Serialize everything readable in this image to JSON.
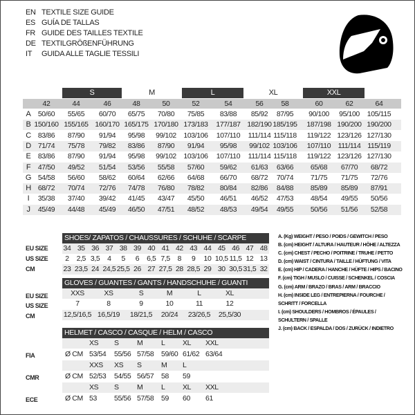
{
  "titles": [
    {
      "code": "EN",
      "text": "TEXTILE SIZE GUIDE"
    },
    {
      "code": "ES",
      "text": "GUÍA DE TALLAS"
    },
    {
      "code": "FR",
      "text": "GUIDE DES TAILLES TEXTILE"
    },
    {
      "code": "DE",
      "text": "TEXTILGRÖßENFÜHRUNG"
    },
    {
      "code": "IT",
      "text": "GUIDA ALLE TAGLIE TESSILI"
    }
  ],
  "icon": "helmet-icon",
  "textile": {
    "size_groups": [
      {
        "label": "S",
        "dark": true
      },
      {
        "label": "M",
        "dark": false
      },
      {
        "label": "L",
        "dark": true
      },
      {
        "label": "XL",
        "dark": false
      },
      {
        "label": "XXL",
        "dark": true
      }
    ],
    "columns": [
      "42",
      "44",
      "46",
      "48",
      "50",
      "52",
      "54",
      "56",
      "58",
      "60",
      "62",
      "64"
    ],
    "rows": [
      {
        "key": "A",
        "values": [
          "50/60",
          "55/65",
          "60/70",
          "65/75",
          "70/80",
          "75/85",
          "83/88",
          "85/92",
          "87/95",
          "90/100",
          "95/100",
          "105/115"
        ]
      },
      {
        "key": "B",
        "values": [
          "150/160",
          "155/165",
          "160/170",
          "165/175",
          "170/180",
          "173/183",
          "177/187",
          "182/190",
          "185/195",
          "187/198",
          "190/200",
          "190/200"
        ]
      },
      {
        "key": "C",
        "values": [
          "83/86",
          "87/90",
          "91/94",
          "95/98",
          "99/102",
          "103/106",
          "107/110",
          "111/114",
          "115/118",
          "119/122",
          "123/126",
          "127/130"
        ]
      },
      {
        "key": "D",
        "values": [
          "71/74",
          "75/78",
          "79/82",
          "83/86",
          "87/90",
          "91/94",
          "95/98",
          "99/102",
          "103/106",
          "107/110",
          "111/114",
          "115/119"
        ]
      },
      {
        "key": "E",
        "values": [
          "83/86",
          "87/90",
          "91/94",
          "95/98",
          "99/102",
          "103/106",
          "107/110",
          "111/114",
          "115/118",
          "119/122",
          "123/126",
          "127/130"
        ]
      },
      {
        "key": "F",
        "values": [
          "47/50",
          "49/52",
          "51/54",
          "53/56",
          "55/58",
          "57/60",
          "59/62",
          "61/63",
          "63/66",
          "65/68",
          "67/70",
          "68/72"
        ]
      },
      {
        "key": "G",
        "values": [
          "54/58",
          "56/60",
          "58/62",
          "60/64",
          "62/66",
          "64/68",
          "66/70",
          "68/72",
          "70/74",
          "71/75",
          "71/75",
          "72/76"
        ]
      },
      {
        "key": "H",
        "values": [
          "68/72",
          "70/74",
          "72/76",
          "74/78",
          "76/80",
          "78/82",
          "80/84",
          "82/86",
          "84/88",
          "85/89",
          "85/89",
          "87/91"
        ]
      },
      {
        "key": "I",
        "values": [
          "35/38",
          "37/40",
          "39/42",
          "41/45",
          "43/47",
          "45/50",
          "46/51",
          "46/52",
          "47/53",
          "48/54",
          "49/55",
          "50/56"
        ]
      },
      {
        "key": "J",
        "values": [
          "45/49",
          "44/48",
          "45/49",
          "46/50",
          "47/51",
          "48/52",
          "48/53",
          "49/54",
          "49/55",
          "50/56",
          "51/56",
          "52/58"
        ]
      }
    ]
  },
  "shoes": {
    "header": "SHOES/ ZAPATOS / CHAUSSURES / SCHUHE / SCARPE",
    "rows": [
      {
        "label": "EU SIZE",
        "values": [
          "34",
          "35",
          "36",
          "37",
          "38",
          "39",
          "40",
          "41",
          "42",
          "43",
          "44",
          "45",
          "46",
          "47",
          "48"
        ]
      },
      {
        "label": "US SIZE",
        "values": [
          "2",
          "2,5",
          "3,5",
          "4",
          "5",
          "6",
          "6,5",
          "7,5",
          "8",
          "9",
          "10",
          "10,5",
          "11,5",
          "12",
          "13"
        ]
      },
      {
        "label": "CM",
        "values": [
          "23",
          "23,5",
          "24",
          "24,5",
          "25,5",
          "26",
          "27",
          "27,5",
          "28",
          "28,5",
          "29",
          "30",
          "30,5",
          "31,5",
          "32"
        ]
      }
    ]
  },
  "gloves": {
    "header": "GLOVES / GUANTES / GANTS / HANDSCHUHE / GUANTI",
    "rows": [
      {
        "label": "EU SIZE",
        "values": [
          "XXS",
          "XS",
          "S",
          "M",
          "L",
          "XL"
        ]
      },
      {
        "label": "US SIZE",
        "values": [
          "7",
          "8",
          "9",
          "10",
          "11",
          "12"
        ]
      },
      {
        "label": "CM",
        "values": [
          "12,5/16,5",
          "16,5/19",
          "18/21,5",
          "20/24",
          "23/26,5",
          "25,5/30"
        ]
      }
    ]
  },
  "helmet": {
    "header": "HELMET / CASCO / CASQUE / HELM / CASCO",
    "unit": "Ø CM",
    "groups": [
      {
        "label": "FIA",
        "sizes": [
          "XS",
          "S",
          "M",
          "L",
          "XL",
          "XXL"
        ],
        "values": [
          "53/54",
          "55/56",
          "57/58",
          "59/60",
          "61/62",
          "63/64"
        ]
      },
      {
        "label": "CMR",
        "sizes": [
          "XXS",
          "XS",
          "S",
          "M",
          "L"
        ],
        "values": [
          "52/53",
          "54/55",
          "56/57",
          "58",
          "59"
        ]
      },
      {
        "label": "ECE",
        "sizes": [
          "XS",
          "S",
          "M",
          "L",
          "XL",
          "XXL"
        ],
        "values": [
          "53",
          "55/56",
          "57/58",
          "59",
          "60",
          "61"
        ]
      }
    ]
  },
  "legend": [
    "A. (Kg) WEIGHT / PESO / POIDS / GEWITCH / PESO",
    "B. (cm) HEIGHT / ALTURA / HAUTEUR / HÖHE / ALTEZZA",
    "C. (cm) CHEST / PECHO / POITRINE / TRUHE / PETTO",
    "D. (cm) WAIST / CINTURA / TAILLE / HÜFTUNG / VITA",
    "E. (cm) HIP / CADERA / HANCHE / HÜFTE / HIPS /  BACINO",
    "F.  (cm) TIGH / MUSLO / CUISSE / SCHENKEL / COSCIA",
    "G. (cm) ARM  / BRAZO / BRAS / ARM / BRACCIO",
    "H. (cm) INSIDE LEG / ENTREPIERNA / FOURCHE /",
    "SCHRITT / FORCELLA",
    "I.  (cm) SHOULDERS / HOMBROS / ÉPAULES /",
    "SCHULTERN / SPALLE",
    "J. (cm) BACK / ESPALDA / DOS / ZURÜCK / INDIETRO"
  ]
}
